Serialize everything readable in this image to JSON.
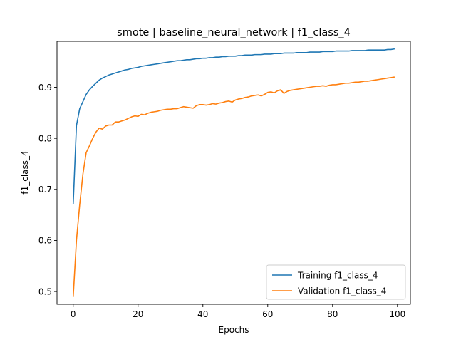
{
  "chart_data": {
    "type": "line",
    "title": "smote | baseline_neural_network | f1_class_4",
    "xlabel": "Epochs",
    "ylabel": "f1_class_4",
    "xlim": [
      -5,
      104
    ],
    "ylim": [
      0.475,
      0.99
    ],
    "xticks": [
      0,
      20,
      40,
      60,
      80,
      100
    ],
    "yticks": [
      0.5,
      0.6,
      0.7,
      0.8,
      0.9
    ],
    "grid": false,
    "legend_position": "lower-right",
    "series": [
      {
        "name": "Training f1_class_4",
        "color": "#1f77b4",
        "x": [
          0,
          1,
          2,
          3,
          4,
          5,
          6,
          7,
          8,
          9,
          10,
          11,
          12,
          13,
          14,
          15,
          16,
          17,
          18,
          19,
          20,
          21,
          22,
          23,
          24,
          25,
          26,
          27,
          28,
          29,
          30,
          31,
          32,
          33,
          34,
          35,
          36,
          37,
          38,
          39,
          40,
          41,
          42,
          43,
          44,
          45,
          46,
          47,
          48,
          49,
          50,
          51,
          52,
          53,
          54,
          55,
          56,
          57,
          58,
          59,
          60,
          61,
          62,
          63,
          64,
          65,
          66,
          67,
          68,
          69,
          70,
          71,
          72,
          73,
          74,
          75,
          76,
          77,
          78,
          79,
          80,
          81,
          82,
          83,
          84,
          85,
          86,
          87,
          88,
          89,
          90,
          91,
          92,
          93,
          94,
          95,
          96,
          97,
          98,
          99
        ],
        "values": [
          0.672,
          0.825,
          0.858,
          0.872,
          0.886,
          0.895,
          0.902,
          0.908,
          0.914,
          0.918,
          0.921,
          0.924,
          0.926,
          0.928,
          0.93,
          0.932,
          0.934,
          0.935,
          0.937,
          0.938,
          0.939,
          0.941,
          0.942,
          0.943,
          0.944,
          0.945,
          0.946,
          0.947,
          0.948,
          0.949,
          0.95,
          0.951,
          0.952,
          0.952,
          0.953,
          0.954,
          0.954,
          0.955,
          0.956,
          0.956,
          0.957,
          0.957,
          0.958,
          0.958,
          0.959,
          0.959,
          0.96,
          0.96,
          0.961,
          0.961,
          0.961,
          0.962,
          0.962,
          0.963,
          0.963,
          0.963,
          0.964,
          0.964,
          0.964,
          0.965,
          0.965,
          0.965,
          0.966,
          0.966,
          0.966,
          0.967,
          0.967,
          0.967,
          0.967,
          0.968,
          0.968,
          0.968,
          0.968,
          0.969,
          0.969,
          0.969,
          0.969,
          0.97,
          0.97,
          0.97,
          0.97,
          0.971,
          0.971,
          0.971,
          0.971,
          0.971,
          0.972,
          0.972,
          0.972,
          0.972,
          0.972,
          0.973,
          0.973,
          0.973,
          0.973,
          0.973,
          0.973,
          0.974,
          0.974,
          0.975
        ]
      },
      {
        "name": "Validation f1_class_4",
        "color": "#ff7f0e",
        "x": [
          0,
          1,
          2,
          3,
          4,
          5,
          6,
          7,
          8,
          9,
          10,
          11,
          12,
          13,
          14,
          15,
          16,
          17,
          18,
          19,
          20,
          21,
          22,
          23,
          24,
          25,
          26,
          27,
          28,
          29,
          30,
          31,
          32,
          33,
          34,
          35,
          36,
          37,
          38,
          39,
          40,
          41,
          42,
          43,
          44,
          45,
          46,
          47,
          48,
          49,
          50,
          51,
          52,
          53,
          54,
          55,
          56,
          57,
          58,
          59,
          60,
          61,
          62,
          63,
          64,
          65,
          66,
          67,
          68,
          69,
          70,
          71,
          72,
          73,
          74,
          75,
          76,
          77,
          78,
          79,
          80,
          81,
          82,
          83,
          84,
          85,
          86,
          87,
          88,
          89,
          90,
          91,
          92,
          93,
          94,
          95,
          96,
          97,
          98,
          99
        ],
        "values": [
          0.49,
          0.6,
          0.67,
          0.73,
          0.772,
          0.785,
          0.8,
          0.812,
          0.82,
          0.818,
          0.824,
          0.826,
          0.826,
          0.832,
          0.832,
          0.834,
          0.836,
          0.839,
          0.842,
          0.844,
          0.843,
          0.847,
          0.846,
          0.849,
          0.851,
          0.852,
          0.853,
          0.855,
          0.856,
          0.857,
          0.857,
          0.858,
          0.858,
          0.86,
          0.862,
          0.861,
          0.86,
          0.859,
          0.864,
          0.866,
          0.866,
          0.865,
          0.866,
          0.868,
          0.867,
          0.869,
          0.87,
          0.872,
          0.873,
          0.871,
          0.875,
          0.877,
          0.878,
          0.88,
          0.881,
          0.883,
          0.884,
          0.885,
          0.883,
          0.886,
          0.89,
          0.891,
          0.889,
          0.893,
          0.895,
          0.888,
          0.892,
          0.894,
          0.895,
          0.896,
          0.897,
          0.898,
          0.899,
          0.9,
          0.901,
          0.902,
          0.902,
          0.903,
          0.902,
          0.904,
          0.905,
          0.905,
          0.906,
          0.907,
          0.908,
          0.908,
          0.909,
          0.91,
          0.91,
          0.911,
          0.912,
          0.912,
          0.913,
          0.914,
          0.915,
          0.916,
          0.917,
          0.918,
          0.919,
          0.92
        ]
      }
    ]
  }
}
